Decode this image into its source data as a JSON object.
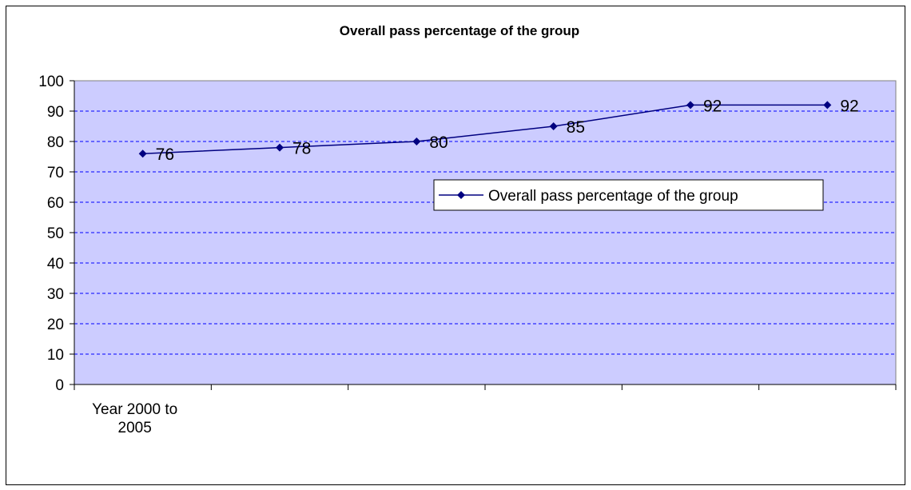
{
  "chart_data": {
    "type": "line",
    "title": "Overall pass percentage of the group",
    "x_category_label": [
      "Year 2000 to",
      "2005"
    ],
    "x": [
      1,
      2,
      3,
      4,
      5,
      6
    ],
    "series": [
      {
        "name": "Overall pass percentage of the group",
        "values": [
          76,
          78,
          80,
          85,
          92,
          92
        ],
        "color": "#000080"
      }
    ],
    "ylim": [
      0,
      100
    ],
    "y_ticks": [
      0,
      10,
      20,
      30,
      40,
      50,
      60,
      70,
      80,
      90,
      100
    ],
    "grid": "horizontal dashed",
    "legend_position": "right-middle",
    "plot_background": "#CCCCFF",
    "gridline_color": "#0000FF"
  }
}
